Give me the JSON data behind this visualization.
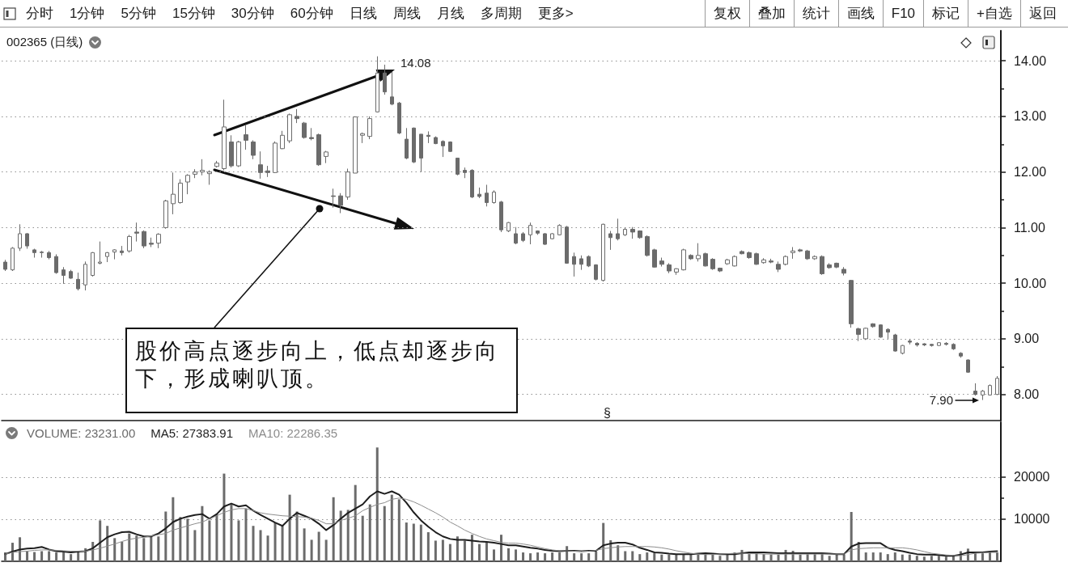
{
  "chart_data": [
    {
      "type": "other",
      "annotations": [
        "分时",
        "1分钟",
        "5分钟",
        "15分钟",
        "30分钟",
        "60分钟",
        "日线",
        "周线",
        "月线",
        "多周期",
        "更多>"
      ]
    },
    {
      "type": "other",
      "annotations": [
        "复权",
        "叠加",
        "统计",
        "画线",
        "F10",
        "标记",
        "+自选",
        "返回"
      ]
    },
    {
      "type": "candlestick",
      "title": "002365 (日线)",
      "categories": [
        null,
        null,
        null,
        null,
        null,
        null,
        null,
        null,
        null,
        null,
        null,
        null,
        null,
        null,
        null,
        null,
        null,
        null,
        null,
        null,
        null,
        null,
        null,
        null,
        null,
        null,
        null,
        null,
        null,
        null,
        null,
        null,
        null,
        null,
        null,
        null,
        null,
        null,
        null,
        null,
        null,
        null,
        null,
        null,
        null,
        null,
        null,
        null,
        null,
        null,
        null,
        null,
        null,
        null,
        null,
        null,
        null,
        null,
        null,
        null,
        null,
        null,
        null,
        null,
        null,
        null,
        null,
        null,
        null,
        null,
        null,
        null,
        null,
        null,
        null,
        null,
        null,
        null,
        null,
        null,
        null,
        null,
        null,
        null,
        null,
        null,
        null,
        null,
        null,
        null,
        null,
        null,
        null,
        null,
        null,
        null,
        null,
        null,
        null,
        null,
        null,
        null,
        null,
        null,
        null,
        null,
        null,
        null,
        null,
        null,
        null,
        null,
        null,
        null,
        null,
        null,
        null,
        null,
        null,
        null,
        null,
        null,
        null,
        null,
        null,
        null,
        null,
        null,
        null,
        null,
        null,
        null,
        null,
        null,
        null,
        null,
        null
      ],
      "ohlc": [
        [
          10.38,
          10.42,
          10.22,
          10.25
        ],
        [
          10.24,
          10.65,
          10.22,
          10.63
        ],
        [
          10.63,
          11.06,
          10.58,
          10.89
        ],
        [
          10.89,
          10.9,
          10.62,
          10.67
        ],
        [
          10.6,
          10.62,
          10.46,
          10.55
        ],
        [
          10.56,
          10.58,
          10.46,
          10.55
        ],
        [
          10.55,
          10.58,
          10.43,
          10.46
        ],
        [
          10.48,
          10.52,
          10.17,
          10.19
        ],
        [
          10.24,
          10.29,
          9.99,
          10.14
        ],
        [
          10.21,
          10.24,
          10.08,
          10.09
        ],
        [
          10.07,
          10.19,
          9.87,
          9.9
        ],
        [
          9.97,
          10.39,
          9.87,
          10.34
        ],
        [
          10.14,
          10.56,
          10.12,
          10.55
        ],
        [
          10.36,
          10.75,
          10.34,
          10.38
        ],
        [
          10.48,
          10.56,
          10.38,
          10.55
        ],
        [
          10.56,
          10.61,
          10.43,
          10.6
        ],
        [
          10.58,
          10.67,
          10.5,
          10.55
        ],
        [
          10.58,
          10.87,
          10.55,
          10.84
        ],
        [
          10.92,
          11.09,
          10.75,
          10.9
        ],
        [
          10.93,
          10.95,
          10.63,
          10.67
        ],
        [
          10.72,
          10.82,
          10.65,
          10.7
        ],
        [
          10.72,
          10.9,
          10.63,
          10.88
        ],
        [
          11.0,
          11.5,
          10.98,
          11.48
        ],
        [
          11.43,
          11.99,
          11.24,
          11.6
        ],
        [
          11.45,
          11.87,
          11.43,
          11.8
        ],
        [
          11.82,
          11.96,
          11.6,
          11.94
        ],
        [
          11.96,
          12.05,
          11.89,
          12.0
        ],
        [
          12.0,
          12.23,
          11.94,
          12.03
        ],
        [
          11.97,
          12.03,
          11.77,
          12.0
        ],
        [
          12.1,
          12.2,
          12.08,
          12.16
        ],
        [
          12.06,
          13.3,
          12.03,
          12.81
        ],
        [
          12.54,
          12.66,
          12.08,
          12.11
        ],
        [
          12.11,
          12.56,
          12.09,
          12.54
        ],
        [
          12.67,
          12.84,
          12.4,
          12.57
        ],
        [
          12.54,
          12.57,
          12.23,
          12.3
        ],
        [
          12.13,
          12.37,
          11.88,
          11.99
        ],
        [
          12.02,
          12.11,
          11.91,
          11.99
        ],
        [
          11.99,
          12.55,
          11.98,
          12.52
        ],
        [
          12.42,
          12.74,
          12.41,
          12.66
        ],
        [
          12.56,
          13.05,
          12.52,
          13.03
        ],
        [
          13.0,
          13.13,
          12.88,
          12.96
        ],
        [
          12.88,
          12.9,
          12.6,
          12.62
        ],
        [
          12.62,
          12.79,
          12.57,
          12.6
        ],
        [
          12.67,
          12.69,
          12.11,
          12.13
        ],
        [
          12.28,
          12.38,
          12.16,
          12.36
        ],
        [
          11.57,
          11.7,
          11.36,
          11.56
        ],
        [
          11.57,
          11.62,
          11.26,
          11.4
        ],
        [
          11.55,
          12.06,
          11.5,
          12.0
        ],
        [
          11.98,
          13.0,
          11.98,
          12.99
        ],
        [
          12.66,
          12.71,
          12.52,
          12.69
        ],
        [
          12.64,
          13.0,
          12.59,
          12.96
        ],
        [
          13.08,
          14.08,
          13.07,
          13.78
        ],
        [
          13.78,
          13.93,
          13.39,
          13.44
        ],
        [
          13.35,
          13.8,
          13.2,
          13.22
        ],
        [
          13.24,
          13.26,
          12.68,
          12.7
        ],
        [
          12.59,
          12.79,
          12.23,
          12.25
        ],
        [
          12.79,
          12.8,
          12.16,
          12.18
        ],
        [
          12.68,
          12.68,
          12.0,
          12.25
        ],
        [
          12.66,
          12.73,
          12.52,
          12.64
        ],
        [
          12.62,
          12.64,
          12.5,
          12.51
        ],
        [
          12.55,
          12.57,
          12.27,
          12.47
        ],
        [
          12.54,
          12.55,
          12.36,
          12.37
        ],
        [
          12.25,
          12.25,
          11.94,
          11.96
        ],
        [
          12.03,
          12.08,
          11.89,
          11.99
        ],
        [
          12.03,
          12.05,
          11.53,
          11.55
        ],
        [
          11.6,
          11.72,
          11.53,
          11.56
        ],
        [
          11.62,
          11.77,
          11.38,
          11.45
        ],
        [
          11.45,
          11.67,
          11.43,
          11.64
        ],
        [
          11.46,
          11.48,
          10.92,
          10.96
        ],
        [
          10.94,
          11.1,
          10.92,
          11.09
        ],
        [
          10.89,
          11.01,
          10.7,
          10.72
        ],
        [
          10.89,
          10.92,
          10.74,
          10.77
        ],
        [
          10.87,
          11.09,
          10.7,
          11.04
        ],
        [
          10.94,
          10.95,
          10.87,
          10.9
        ],
        [
          10.89,
          10.9,
          10.69,
          10.7
        ],
        [
          10.8,
          10.9,
          10.79,
          10.89
        ],
        [
          10.87,
          11.06,
          10.86,
          11.04
        ],
        [
          11.01,
          11.03,
          10.35,
          10.36
        ],
        [
          10.48,
          10.55,
          10.12,
          10.34
        ],
        [
          10.44,
          10.5,
          10.24,
          10.34
        ],
        [
          10.48,
          10.5,
          10.29,
          10.31
        ],
        [
          10.33,
          10.34,
          10.05,
          10.07
        ],
        [
          10.05,
          11.07,
          10.03,
          11.06
        ],
        [
          10.89,
          10.94,
          10.6,
          10.82
        ],
        [
          10.89,
          11.16,
          10.77,
          10.8
        ],
        [
          10.87,
          11.0,
          10.85,
          10.97
        ],
        [
          10.97,
          11.01,
          10.8,
          10.92
        ],
        [
          10.94,
          10.95,
          10.8,
          10.82
        ],
        [
          10.84,
          10.86,
          10.48,
          10.5
        ],
        [
          10.6,
          10.62,
          10.28,
          10.29
        ],
        [
          10.4,
          10.46,
          10.3,
          10.34
        ],
        [
          10.33,
          10.36,
          10.18,
          10.22
        ],
        [
          10.2,
          10.27,
          10.15,
          10.26
        ],
        [
          10.24,
          10.62,
          10.23,
          10.6
        ],
        [
          10.5,
          10.52,
          10.42,
          10.44
        ],
        [
          10.44,
          10.72,
          10.39,
          10.5
        ],
        [
          10.53,
          10.55,
          10.3,
          10.31
        ],
        [
          10.43,
          10.45,
          10.24,
          10.26
        ],
        [
          10.27,
          10.28,
          10.2,
          10.22
        ],
        [
          10.35,
          10.44,
          10.33,
          10.42
        ],
        [
          10.31,
          10.5,
          10.3,
          10.48
        ],
        [
          10.57,
          10.59,
          10.52,
          10.53
        ],
        [
          10.55,
          10.57,
          10.44,
          10.46
        ],
        [
          10.53,
          10.55,
          10.33,
          10.34
        ],
        [
          10.37,
          10.45,
          10.35,
          10.42
        ],
        [
          10.4,
          10.44,
          10.36,
          10.38
        ],
        [
          10.34,
          10.39,
          10.2,
          10.25
        ],
        [
          10.34,
          10.5,
          10.32,
          10.48
        ],
        [
          10.55,
          10.65,
          10.44,
          10.58
        ],
        [
          10.6,
          10.62,
          10.56,
          10.58
        ],
        [
          10.58,
          10.6,
          10.42,
          10.44
        ],
        [
          10.44,
          10.5,
          10.42,
          10.48
        ],
        [
          10.48,
          10.5,
          10.15,
          10.17
        ],
        [
          10.33,
          10.36,
          10.26,
          10.28
        ],
        [
          10.36,
          10.37,
          10.27,
          10.29
        ],
        [
          10.25,
          10.29,
          10.14,
          10.18
        ],
        [
          10.05,
          10.06,
          9.2,
          9.27
        ],
        [
          9.18,
          9.2,
          8.96,
          9.08
        ],
        [
          9.0,
          9.2,
          8.98,
          9.19
        ],
        [
          9.27,
          9.28,
          9.2,
          9.22
        ],
        [
          9.25,
          9.26,
          9.02,
          9.03
        ],
        [
          9.17,
          9.19,
          9.0,
          9.12
        ],
        [
          9.07,
          9.09,
          8.77,
          8.78
        ],
        [
          8.74,
          8.89,
          8.72,
          8.88
        ],
        [
          8.96,
          9.0,
          8.9,
          8.94
        ],
        [
          8.92,
          8.94,
          8.86,
          8.89
        ],
        [
          8.91,
          8.92,
          8.87,
          8.89
        ],
        [
          8.9,
          8.91,
          8.86,
          8.88
        ],
        [
          8.88,
          8.94,
          8.87,
          8.93
        ],
        [
          8.92,
          8.94,
          8.88,
          8.9
        ],
        [
          8.9,
          8.92,
          8.8,
          8.82
        ],
        [
          8.74,
          8.76,
          8.66,
          8.69
        ],
        [
          8.62,
          8.63,
          8.39,
          8.4
        ],
        [
          8.06,
          8.2,
          7.98,
          8.0
        ],
        [
          7.99,
          8.08,
          7.9,
          8.06
        ],
        [
          7.99,
          8.18,
          7.98,
          8.16
        ],
        [
          8.0,
          8.33,
          7.99,
          8.29
        ]
      ],
      "color": "#6b6b6b",
      "ylim": [
        7.53,
        14.54
      ],
      "yticks": [
        {
          "value": 8,
          "label": "8.00"
        },
        {
          "value": 8.5,
          "label": null
        },
        {
          "value": 9,
          "label": "9.00"
        },
        {
          "value": 9.5,
          "label": null
        },
        {
          "value": 10,
          "label": "10.00"
        },
        {
          "value": 10.5,
          "label": null
        },
        {
          "value": 11,
          "label": "11.00"
        },
        {
          "value": 11.5,
          "label": null
        },
        {
          "value": 12,
          "label": "12.00"
        },
        {
          "value": 12.5,
          "label": null
        },
        {
          "value": 13,
          "label": "13.00"
        },
        {
          "value": 13.5,
          "label": null
        },
        {
          "value": 14,
          "label": "14.00"
        }
      ],
      "grid": "y",
      "tick_labels": "y",
      "annotations": [
        "14.08",
        "7.90",
        "股价高点逐步向上，低点却逐步向下，形成喇叭顶。",
        "§"
      ]
    },
    {
      "type": "bar",
      "categories": [
        null,
        null,
        null,
        null,
        null,
        null,
        null,
        null,
        null,
        null,
        null,
        null,
        null,
        null,
        null,
        null,
        null,
        null,
        null,
        null,
        null,
        null,
        null,
        null,
        null,
        null,
        null,
        null,
        null,
        null,
        null,
        null,
        null,
        null,
        null,
        null,
        null,
        null,
        null,
        null,
        null,
        null,
        null,
        null,
        null,
        null,
        null,
        null,
        null,
        null,
        null,
        null,
        null,
        null,
        null,
        null,
        null,
        null,
        null,
        null,
        null,
        null,
        null,
        null,
        null,
        null,
        null,
        null,
        null,
        null,
        null,
        null,
        null,
        null,
        null,
        null,
        null,
        null,
        null,
        null,
        null,
        null,
        null,
        null,
        null,
        null,
        null,
        null,
        null,
        null,
        null,
        null,
        null,
        null,
        null,
        null,
        null,
        null,
        null,
        null,
        null,
        null,
        null,
        null,
        null,
        null,
        null,
        null,
        null,
        null,
        null,
        null,
        null,
        null,
        null,
        null,
        null,
        null,
        null,
        null,
        null,
        null,
        null,
        null,
        null,
        null,
        null,
        null,
        null,
        null,
        null,
        null,
        null,
        null,
        null,
        null,
        null
      ],
      "series": [
        {
          "name": "VOLUME: 23231.00",
          "color": "#6b6b6b",
          "values": [
            2100,
            4400,
            5700,
            2400,
            2200,
            2400,
            2400,
            2100,
            2100,
            1700,
            2400,
            3100,
            4600,
            9700,
            8400,
            5500,
            4600,
            6600,
            6100,
            5500,
            5900,
            5900,
            11800,
            15200,
            10500,
            10100,
            7400,
            13100,
            9700,
            11200,
            20800,
            13500,
            9700,
            12500,
            8400,
            7400,
            6100,
            9200,
            8400,
            15800,
            11800,
            7800,
            5100,
            7000,
            5100,
            15200,
            12000,
            12200,
            18100,
            10800,
            13500,
            27000,
            13100,
            15800,
            14700,
            9200,
            8900,
            8700,
            6900,
            4900,
            5100,
            4100,
            5900,
            4900,
            6300,
            4100,
            4600,
            2800,
            6300,
            3100,
            2800,
            2100,
            1900,
            2100,
            1900,
            2100,
            2100,
            3600,
            1900,
            1900,
            1900,
            2300,
            9100,
            5000,
            3800,
            2400,
            2400,
            1700,
            2100,
            1900,
            1600,
            1600,
            1600,
            1700,
            1600,
            1600,
            1900,
            1600,
            1300,
            1700,
            2100,
            2700,
            1700,
            2100,
            1700,
            1600,
            1600,
            2700,
            2500,
            1600,
            1700,
            1700,
            1900,
            1300,
            1600,
            1600,
            11700,
            4600,
            2100,
            2100,
            2100,
            1700,
            2100,
            1600,
            1600,
            1300,
            1100,
            1300,
            1300,
            1100,
            1300,
            2400,
            3000,
            1900,
            1900,
            2400,
            2100
          ]
        },
        {
          "type": "line",
          "name": "MA5: 27383.91",
          "color": "#1e1e1e",
          "values": [
            1700,
            2300,
            2800,
            3000,
            3100,
            3400,
            2800,
            2400,
            2300,
            2100,
            2300,
            2400,
            3100,
            4400,
            5700,
            6400,
            6900,
            7000,
            6400,
            5900,
            5900,
            6600,
            7800,
            9300,
            10100,
            10600,
            11000,
            11200,
            10100,
            11200,
            13000,
            13700,
            13000,
            13300,
            12000,
            11000,
            10100,
            9200,
            8400,
            10100,
            11500,
            10800,
            10100,
            8900,
            7400,
            8600,
            10100,
            11500,
            12500,
            13500,
            15400,
            16600,
            16000,
            16600,
            15800,
            13900,
            11600,
            9700,
            8200,
            6900,
            5900,
            5300,
            5100,
            5100,
            4900,
            4700,
            4600,
            4400,
            4100,
            3800,
            3800,
            3500,
            3200,
            3000,
            2700,
            2500,
            2400,
            2500,
            2500,
            2400,
            2500,
            2500,
            3800,
            4200,
            4400,
            4400,
            4000,
            3200,
            2700,
            2100,
            2000,
            1800,
            1700,
            1700,
            1700,
            1800,
            1900,
            1800,
            1700,
            1700,
            1700,
            1900,
            2100,
            2100,
            2100,
            2000,
            1900,
            1900,
            1900,
            1900,
            1900,
            1900,
            1900,
            1800,
            1700,
            1700,
            3500,
            4200,
            4300,
            4300,
            4300,
            3200,
            2700,
            2400,
            2000,
            1700,
            1600,
            1600,
            1500,
            1300,
            1300,
            1600,
            2100,
            2100,
            2100,
            2300,
            2400
          ]
        },
        {
          "type": "line",
          "name": "MA10: 22286.35",
          "color": "#8c8c8c",
          "values": [
            1700,
            2100,
            2300,
            2400,
            2600,
            2700,
            2700,
            2600,
            2500,
            2400,
            2400,
            2400,
            2700,
            3100,
            3600,
            4100,
            4700,
            5200,
            5500,
            5700,
            6000,
            6300,
            6600,
            7400,
            7900,
            8400,
            8900,
            9300,
            10100,
            10800,
            11600,
            12200,
            12500,
            12500,
            12000,
            11500,
            11200,
            11000,
            10800,
            10700,
            10600,
            10500,
            10200,
            9700,
            8900,
            8900,
            9700,
            10200,
            10800,
            12000,
            12800,
            13500,
            13900,
            14700,
            15000,
            14700,
            14100,
            13300,
            12400,
            11500,
            10500,
            9300,
            8400,
            7400,
            6600,
            5900,
            5300,
            4900,
            4500,
            4300,
            4300,
            4100,
            3800,
            3400,
            3000,
            2700,
            2500,
            2500,
            2400,
            2400,
            2400,
            2600,
            3000,
            3200,
            3400,
            3500,
            3500,
            3500,
            3500,
            3400,
            3200,
            2900,
            2500,
            2200,
            1900,
            1700,
            1600,
            1600,
            1700,
            1800,
            1900,
            1900,
            1800,
            1800,
            1700,
            1700,
            1700,
            1700,
            1700,
            1700,
            1700,
            1700,
            1700,
            1700,
            1700,
            1700,
            2700,
            3000,
            3100,
            3200,
            3200,
            3200,
            3200,
            3200,
            3000,
            2700,
            2300,
            1900,
            1700,
            1500,
            1400,
            1300,
            1600,
            1900,
            2000,
            2100,
            2100
          ]
        }
      ],
      "ylim": [
        0,
        33000
      ],
      "yticks": [
        10000,
        {
          "value": 15000,
          "label": null
        },
        20000
      ],
      "grid": "y",
      "tick_labels": "y",
      "legend": "top left",
      "marker": "none"
    }
  ]
}
